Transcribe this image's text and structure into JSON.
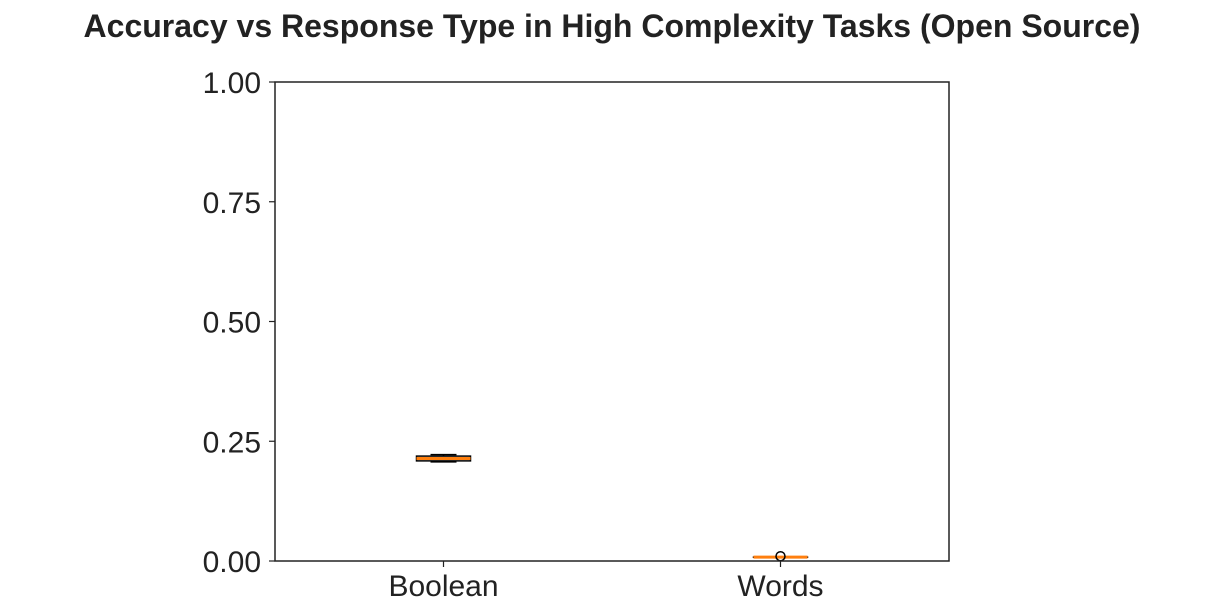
{
  "chart_data": {
    "type": "box",
    "title": "Accuracy vs Response Type in High Complexity Tasks (Open Source)",
    "xlabel": "",
    "ylabel": "",
    "categories": [
      "Boolean",
      "Words"
    ],
    "ylim": [
      0,
      1
    ],
    "yticks": [
      "0.00",
      "0.25",
      "0.50",
      "0.75",
      "1.00"
    ],
    "ytick_values": [
      0,
      0.25,
      0.5,
      0.75,
      1.0
    ],
    "boxes": [
      {
        "category": "Boolean",
        "whislo": 0.207,
        "q1": 0.209,
        "med": 0.214,
        "q3": 0.219,
        "whishi": 0.222,
        "fliers": []
      },
      {
        "category": "Words",
        "whislo": 0.008,
        "q1": 0.008,
        "med": 0.008,
        "q3": 0.008,
        "whishi": 0.008,
        "fliers": [
          0.01
        ]
      }
    ],
    "grid": false,
    "colors": {
      "box": "#000000",
      "median": "#ff7f0e",
      "axes": "#222222"
    }
  }
}
